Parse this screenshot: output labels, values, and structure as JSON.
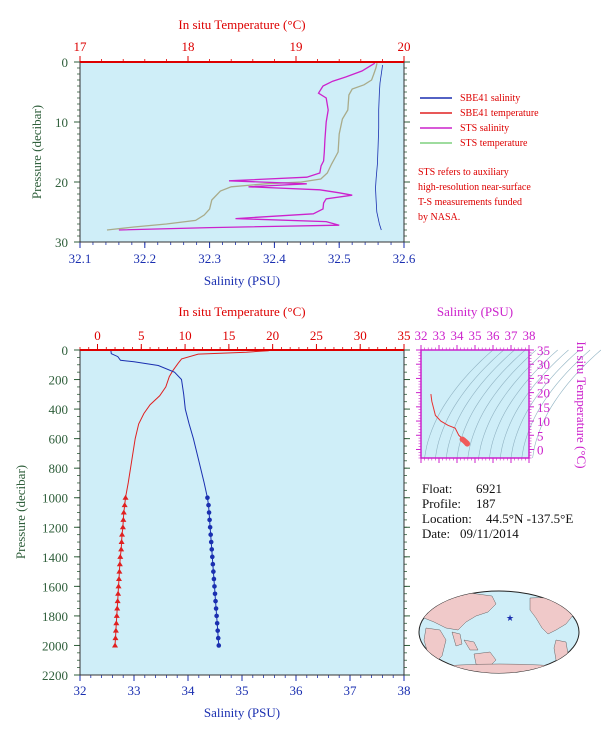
{
  "colors": {
    "plot_bg": "#cfeef8",
    "temperature": "#e02020",
    "salinity": "#1a2fb0",
    "sts_salinity": "#cc22cc",
    "sts_temperature": "#7fd07f",
    "pressure_label": "#2e5e3a"
  },
  "chart_data": [
    {
      "id": "near-surface",
      "type": "line",
      "top_axis_label": "In situ Temperature (°C)",
      "bottom_axis_label": "Salinity (PSU)",
      "ylabel": "Pressure (decibar)",
      "temperature_range": [
        17,
        20
      ],
      "salinity_range": [
        32.1,
        32.6
      ],
      "pressure_range": [
        0,
        30
      ],
      "temperature_ticks": [
        "17",
        "18",
        "19",
        "20"
      ],
      "salinity_ticks": [
        "32.1",
        "32.2",
        "32.3",
        "32.4",
        "32.5",
        "32.6"
      ],
      "pressure_ticks": [
        "0",
        "10",
        "20",
        "30"
      ],
      "legend": [
        {
          "label": "SBE41 salinity",
          "color": "#1a2fb0"
        },
        {
          "label": "SBE41 temperature",
          "color": "#e02020"
        },
        {
          "label": "STS salinity",
          "color": "#cc22cc"
        },
        {
          "label": "STS temperature",
          "color": "#7fd07f"
        }
      ],
      "note": [
        "STS refers to auxiliary",
        "high-resolution near-surface",
        "T-S measurements funded",
        "by NASA."
      ],
      "series": [
        {
          "name": "SBE41 salinity",
          "axis": "salinity",
          "points": [
            [
              32.567,
              0.5
            ],
            [
              32.565,
              2
            ],
            [
              32.563,
              3.5
            ],
            [
              32.562,
              5
            ],
            [
              32.561,
              8
            ],
            [
              32.561,
              11
            ],
            [
              32.56,
              14
            ],
            [
              32.559,
              17
            ],
            [
              32.557,
              19.5
            ],
            [
              32.556,
              21
            ],
            [
              32.557,
              23
            ],
            [
              32.558,
              25
            ],
            [
              32.562,
              27
            ],
            [
              32.565,
              28
            ]
          ]
        },
        {
          "name": "STS temperature",
          "axis": "temperature",
          "points": [
            [
              19.75,
              0.2
            ],
            [
              19.74,
              1
            ],
            [
              19.72,
              2
            ],
            [
              19.7,
              3
            ],
            [
              19.63,
              3.8
            ],
            [
              19.52,
              4.5
            ],
            [
              19.49,
              5.5
            ],
            [
              19.48,
              8
            ],
            [
              19.43,
              9.5
            ],
            [
              19.4,
              12
            ],
            [
              19.39,
              15
            ],
            [
              19.36,
              16
            ],
            [
              19.33,
              17
            ],
            [
              19.29,
              18.5
            ],
            [
              19.23,
              19.5
            ],
            [
              19.05,
              20
            ],
            [
              18.72,
              20.3
            ],
            [
              18.4,
              20.8
            ],
            [
              18.3,
              21.5
            ],
            [
              18.22,
              23
            ],
            [
              18.2,
              24.5
            ],
            [
              18.15,
              25.5
            ],
            [
              18.07,
              26.4
            ],
            [
              17.8,
              27
            ],
            [
              17.5,
              27.5
            ],
            [
              17.3,
              27.9
            ],
            [
              17.25,
              28
            ]
          ]
        },
        {
          "name": "STS salinity",
          "axis": "salinity",
          "points": [
            [
              32.555,
              0.2
            ],
            [
              32.535,
              1.5
            ],
            [
              32.51,
              2.5
            ],
            [
              32.49,
              3.2
            ],
            [
              32.475,
              4
            ],
            [
              32.468,
              5.2
            ],
            [
              32.48,
              6
            ],
            [
              32.483,
              8
            ],
            [
              32.48,
              10
            ],
            [
              32.478,
              13
            ],
            [
              32.477,
              15
            ],
            [
              32.476,
              16.5
            ],
            [
              32.472,
              17.3
            ],
            [
              32.47,
              18.5
            ],
            [
              32.45,
              19.2
            ],
            [
              32.33,
              19.8
            ],
            [
              32.45,
              20.3
            ],
            [
              32.36,
              20.8
            ],
            [
              32.47,
              21.3
            ],
            [
              32.5,
              21.8
            ],
            [
              32.52,
              22.2
            ],
            [
              32.48,
              22.8
            ],
            [
              32.476,
              23.5
            ],
            [
              32.475,
              24.5
            ],
            [
              32.46,
              25.3
            ],
            [
              32.34,
              26.1
            ],
            [
              32.48,
              26.6
            ],
            [
              32.5,
              27.2
            ],
            [
              32.3,
              27.6
            ],
            [
              32.16,
              28
            ]
          ]
        }
      ]
    },
    {
      "id": "full-profile",
      "type": "line",
      "top_axis_label": "In situ Temperature (°C)",
      "bottom_axis_label": "Salinity (PSU)",
      "ylabel": "Pressure (decibar)",
      "temperature_range": [
        -2,
        35
      ],
      "salinity_range": [
        32,
        38
      ],
      "pressure_range": [
        0,
        2200
      ],
      "temperature_ticks": [
        "0",
        "5",
        "10",
        "15",
        "20",
        "25",
        "30",
        "35"
      ],
      "salinity_ticks": [
        "32",
        "33",
        "34",
        "35",
        "36",
        "37",
        "38"
      ],
      "pressure_ticks": [
        "0",
        "200",
        "400",
        "600",
        "800",
        "1000",
        "1200",
        "1400",
        "1600",
        "1800",
        "2000",
        "2200"
      ],
      "temperature_profile": [
        [
          19.8,
          0
        ],
        [
          19.5,
          5
        ],
        [
          17.0,
          15
        ],
        [
          11.5,
          28
        ],
        [
          9.6,
          60
        ],
        [
          9.2,
          90
        ],
        [
          8.6,
          140
        ],
        [
          8.2,
          180
        ],
        [
          7.8,
          250
        ],
        [
          7.1,
          310
        ],
        [
          6.0,
          370
        ],
        [
          5.3,
          430
        ],
        [
          4.7,
          500
        ],
        [
          4.3,
          600
        ],
        [
          3.9,
          750
        ],
        [
          3.5,
          900
        ],
        [
          3.2,
          1000
        ]
      ],
      "temperature_samples": [
        [
          3.2,
          1000
        ],
        [
          3.1,
          1050
        ],
        [
          3.0,
          1100
        ],
        [
          2.95,
          1150
        ],
        [
          2.9,
          1200
        ],
        [
          2.8,
          1250
        ],
        [
          2.75,
          1300
        ],
        [
          2.7,
          1350
        ],
        [
          2.6,
          1400
        ],
        [
          2.55,
          1450
        ],
        [
          2.5,
          1500
        ],
        [
          2.45,
          1550
        ],
        [
          2.4,
          1600
        ],
        [
          2.35,
          1650
        ],
        [
          2.3,
          1700
        ],
        [
          2.25,
          1750
        ],
        [
          2.2,
          1800
        ],
        [
          2.15,
          1850
        ],
        [
          2.1,
          1900
        ],
        [
          2.05,
          1950
        ],
        [
          2.0,
          2000
        ]
      ],
      "salinity_profile": [
        [
          32.57,
          0
        ],
        [
          32.58,
          25
        ],
        [
          32.7,
          45
        ],
        [
          32.75,
          70
        ],
        [
          33.0,
          80
        ],
        [
          33.45,
          105
        ],
        [
          33.75,
          150
        ],
        [
          33.88,
          200
        ],
        [
          33.92,
          300
        ],
        [
          33.95,
          400
        ],
        [
          34.02,
          500
        ],
        [
          34.1,
          600
        ],
        [
          34.2,
          750
        ],
        [
          34.3,
          900
        ],
        [
          34.36,
          1000
        ]
      ],
      "salinity_samples": [
        [
          34.36,
          1000
        ],
        [
          34.38,
          1050
        ],
        [
          34.39,
          1100
        ],
        [
          34.4,
          1150
        ],
        [
          34.41,
          1200
        ],
        [
          34.42,
          1250
        ],
        [
          34.43,
          1300
        ],
        [
          34.44,
          1350
        ],
        [
          34.45,
          1400
        ],
        [
          34.46,
          1450
        ],
        [
          34.47,
          1500
        ],
        [
          34.48,
          1550
        ],
        [
          34.49,
          1600
        ],
        [
          34.5,
          1650
        ],
        [
          34.51,
          1700
        ],
        [
          34.52,
          1750
        ],
        [
          34.53,
          1800
        ],
        [
          34.54,
          1850
        ],
        [
          34.55,
          1900
        ],
        [
          34.56,
          1950
        ],
        [
          34.57,
          2000
        ]
      ]
    },
    {
      "id": "ts-diagram",
      "type": "scatter",
      "top_axis_label": "Salinity (PSU)",
      "right_axis_label": "In situ Temperature (°C)",
      "salinity_range": [
        32,
        38
      ],
      "temperature_range": [
        -3,
        35
      ],
      "salinity_ticks": [
        "32",
        "33",
        "34",
        "35",
        "36",
        "37",
        "38"
      ],
      "temperature_ticks": [
        "0",
        "5",
        "10",
        "15",
        "20",
        "25",
        "30",
        "35"
      ],
      "curve": [
        [
          32.55,
          19.5
        ],
        [
          32.6,
          17
        ],
        [
          32.8,
          12
        ],
        [
          33.1,
          10
        ],
        [
          33.5,
          8.5
        ],
        [
          33.9,
          7.5
        ],
        [
          34.1,
          5
        ],
        [
          34.35,
          3.5
        ],
        [
          34.57,
          2.0
        ]
      ],
      "dense_points": [
        [
          34.3,
          3.6
        ],
        [
          34.38,
          3.2
        ],
        [
          34.45,
          2.8
        ],
        [
          34.5,
          2.5
        ],
        [
          34.55,
          2.2
        ],
        [
          34.57,
          2.0
        ]
      ]
    }
  ],
  "info": {
    "float_label": "Float:",
    "float_value": "6921",
    "profile_label": "Profile:",
    "profile_value": "187",
    "location_label": "Location:",
    "location_value": "44.5°N  -137.5°E",
    "date_label": "Date:",
    "date_value": "09/11/2014"
  },
  "map": {
    "marker_lat": 44.5,
    "marker_lon": -137.5,
    "ocean_color": "#cfeef8",
    "land_color": "#f0c9c9"
  }
}
